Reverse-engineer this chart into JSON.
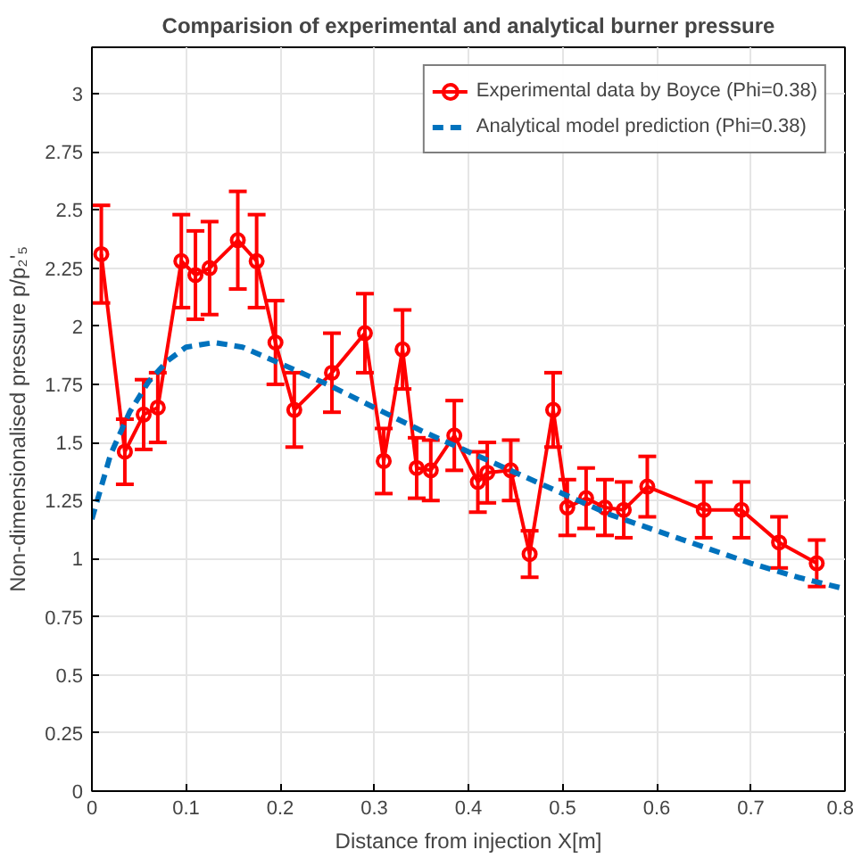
{
  "chart_data": {
    "type": "line",
    "title": "Comparision of experimental and analytical burner pressure",
    "xlabel": "Distance from injection X[m]",
    "ylabel": "Non-dimensionalised pressure p/p₂'₅",
    "xlim": [
      0,
      0.8
    ],
    "ylim": [
      0,
      3.2
    ],
    "xticks": [
      0,
      0.1,
      0.2,
      0.3,
      0.4,
      0.5,
      0.6,
      0.7,
      0.8
    ],
    "yticks": [
      0,
      0.25,
      0.5,
      0.75,
      1,
      1.25,
      1.5,
      1.75,
      2,
      2.25,
      2.5,
      2.75,
      3
    ],
    "grid": true,
    "legend": "top right",
    "series": [
      {
        "name": "Experimental data by Boyce (Phi=0.38)",
        "color": "#ff0000",
        "marker": "circle",
        "line_style": "solid",
        "x": [
          0.01,
          0.035,
          0.055,
          0.07,
          0.095,
          0.11,
          0.125,
          0.155,
          0.175,
          0.195,
          0.215,
          0.255,
          0.29,
          0.31,
          0.33,
          0.345,
          0.36,
          0.385,
          0.41,
          0.42,
          0.445,
          0.465,
          0.49,
          0.505,
          0.525,
          0.545,
          0.565,
          0.59,
          0.65,
          0.69,
          0.73,
          0.77
        ],
        "values": [
          2.31,
          1.46,
          1.62,
          1.65,
          2.28,
          2.22,
          2.25,
          2.37,
          2.28,
          1.93,
          1.64,
          1.8,
          1.97,
          1.42,
          1.9,
          1.39,
          1.38,
          1.53,
          1.33,
          1.37,
          1.38,
          1.02,
          1.64,
          1.22,
          1.26,
          1.22,
          1.21,
          1.31,
          1.21,
          1.21,
          1.07,
          0.98
        ],
        "errors": [
          0.21,
          0.14,
          0.15,
          0.15,
          0.2,
          0.19,
          0.2,
          0.21,
          0.2,
          0.18,
          0.16,
          0.17,
          0.17,
          0.14,
          0.17,
          0.13,
          0.13,
          0.15,
          0.13,
          0.13,
          0.13,
          0.1,
          0.16,
          0.12,
          0.13,
          0.12,
          0.12,
          0.13,
          0.12,
          0.12,
          0.11,
          0.1
        ]
      },
      {
        "name": "Analytical model prediction (Phi=0.38)",
        "color": "#0072bd",
        "marker": "none",
        "line_style": "dashed",
        "x": [
          0,
          0.02,
          0.04,
          0.06,
          0.08,
          0.1,
          0.13,
          0.16,
          0.2,
          0.25,
          0.3,
          0.35,
          0.4,
          0.45,
          0.5,
          0.55,
          0.6,
          0.65,
          0.7,
          0.75,
          0.8
        ],
        "values": [
          1.17,
          1.45,
          1.63,
          1.76,
          1.85,
          1.91,
          1.93,
          1.91,
          1.84,
          1.75,
          1.65,
          1.55,
          1.46,
          1.37,
          1.28,
          1.19,
          1.12,
          1.05,
          0.98,
          0.92,
          0.87
        ]
      }
    ]
  }
}
